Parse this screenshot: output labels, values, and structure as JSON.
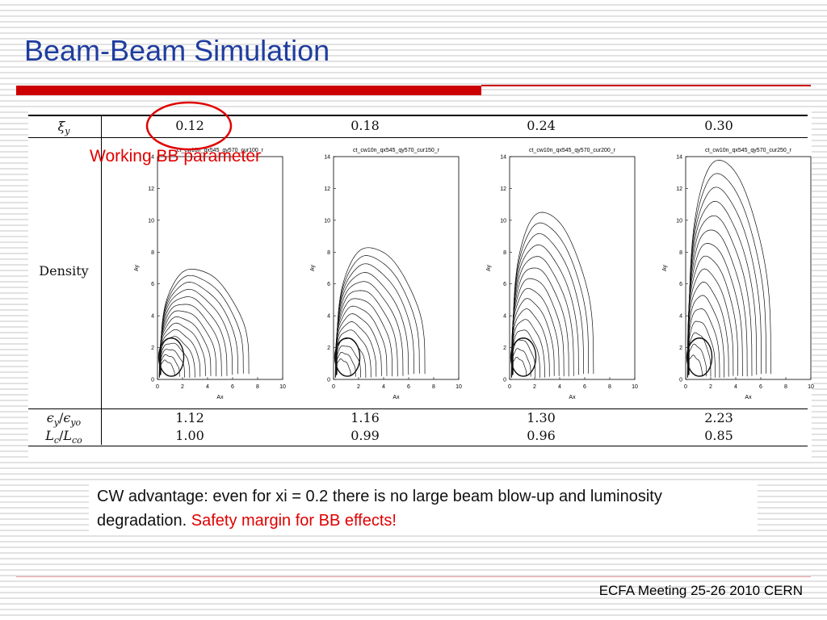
{
  "slide": {
    "title": "Beam-Beam Simulation",
    "accent_color": "#cc0000",
    "title_color": "#1f3d9e",
    "footer": "ECFA Meeting 25-26 2010 CERN"
  },
  "annotation": {
    "label": "Working BB parameter",
    "color": "#e00000"
  },
  "table": {
    "row_labels": {
      "xi": {
        "symbol": "ξ",
        "sub": "y"
      },
      "density": "Density",
      "emit": {
        "symbol": "ϵ",
        "sub": "y",
        "sep": "/",
        "symbol2": "ϵ",
        "sub2": "yo"
      },
      "lumi": {
        "symbol": "L",
        "sub": "c",
        "sep": "/",
        "symbol2": "L",
        "sub2": "co"
      }
    },
    "columns": [
      {
        "xi": "0.12",
        "emit_ratio": "1.12",
        "lumi_ratio": "1.00"
      },
      {
        "xi": "0.18",
        "emit_ratio": "1.16",
        "lumi_ratio": "0.99"
      },
      {
        "xi": "0.24",
        "emit_ratio": "1.30",
        "lumi_ratio": "0.96"
      },
      {
        "xi": "0.30",
        "emit_ratio": "2.23",
        "lumi_ratio": "0.85"
      }
    ]
  },
  "callout": {
    "text": "CW advantage: even for xi = 0.2 there is no large beam blow-up and luminosity degradation.",
    "highlight": "Safety margin for BB effects!"
  },
  "chart_data": [
    {
      "type": "contour",
      "title": "ct_cw10n_qx545_qy570_cur100_r",
      "xlabel": "Ax",
      "ylabel": "Ay",
      "xlim": [
        0,
        10
      ],
      "ylim": [
        0,
        14
      ],
      "xticks": [
        0,
        2,
        4,
        6,
        8,
        10
      ],
      "yticks": [
        0,
        2,
        4,
        6,
        8,
        10,
        12,
        14
      ],
      "outer_boundary_ay": 7.2,
      "outer_boundary_ax": 7.3,
      "contour_levels": 15
    },
    {
      "type": "contour",
      "title": "ct_cw10n_qx545_qy570_cur150_r",
      "xlabel": "Ax",
      "ylabel": "Ay",
      "xlim": [
        0,
        10
      ],
      "ylim": [
        0,
        14
      ],
      "xticks": [
        0,
        2,
        4,
        6,
        8,
        10
      ],
      "yticks": [
        0,
        2,
        4,
        6,
        8,
        10,
        12,
        14
      ],
      "outer_boundary_ay": 8.6,
      "outer_boundary_ax": 7.3,
      "contour_levels": 15
    },
    {
      "type": "contour",
      "title": "ct_cw10n_qx545_qy570_cur200_r",
      "xlabel": "Ax",
      "ylabel": "Ay",
      "xlim": [
        0,
        10
      ],
      "ylim": [
        0,
        14
      ],
      "xticks": [
        0,
        2,
        4,
        6,
        8,
        10
      ],
      "yticks": [
        0,
        2,
        4,
        6,
        8,
        10,
        12,
        14
      ],
      "outer_boundary_ay": 10.9,
      "outer_boundary_ax": 6.7,
      "contour_levels": 15
    },
    {
      "type": "contour",
      "title": "ct_cw10n_qx545_qy570_cur250_r",
      "xlabel": "Ax",
      "ylabel": "Ay",
      "xlim": [
        0,
        10
      ],
      "ylim": [
        0,
        14
      ],
      "xticks": [
        0,
        2,
        4,
        6,
        8,
        10
      ],
      "yticks": [
        0,
        2,
        4,
        6,
        8,
        10,
        12,
        14
      ],
      "outer_boundary_ay": 14.3,
      "outer_boundary_ax": 6.8,
      "contour_levels": 16
    }
  ]
}
